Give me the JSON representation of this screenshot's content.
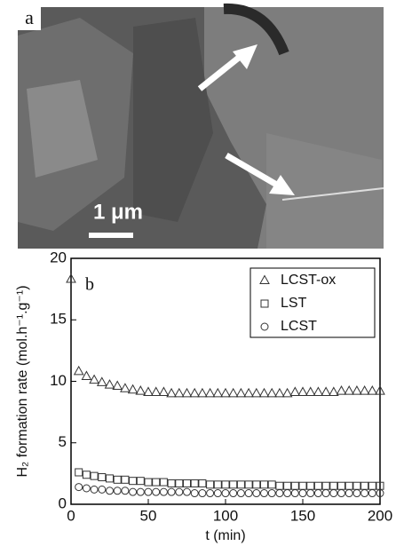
{
  "image_panel": {
    "label": "a",
    "scale_bar": "1 μm"
  },
  "chart_data": {
    "type": "scatter",
    "panel_label": "b",
    "xlabel": "t (min)",
    "ylabel": "H₂ formation rate (mol.h⁻¹.g⁻¹)",
    "xlim": [
      0,
      200
    ],
    "xticks": [
      0,
      50,
      100,
      150,
      200
    ],
    "ylim": [
      0,
      20
    ],
    "yticks": [
      0,
      5,
      10,
      15,
      20
    ],
    "legend": "upper right",
    "x": [
      0,
      5,
      10,
      15,
      20,
      25,
      30,
      35,
      40,
      45,
      50,
      55,
      60,
      65,
      70,
      75,
      80,
      85,
      90,
      95,
      100,
      105,
      110,
      115,
      120,
      125,
      130,
      135,
      140,
      145,
      150,
      155,
      160,
      165,
      170,
      175,
      180,
      185,
      190,
      195,
      200
    ],
    "series": [
      {
        "name": "LCST-ox",
        "marker": "triangle",
        "color": "#333333",
        "values": [
          18.3,
          10.8,
          10.4,
          10.1,
          9.9,
          9.7,
          9.6,
          9.4,
          9.3,
          9.2,
          9.1,
          9.1,
          9.1,
          9.0,
          9.0,
          9.0,
          9.0,
          9.0,
          9.0,
          9.0,
          9.0,
          9.0,
          9.0,
          9.0,
          9.0,
          9.0,
          9.0,
          9.0,
          9.0,
          9.1,
          9.1,
          9.1,
          9.1,
          9.1,
          9.1,
          9.2,
          9.2,
          9.2,
          9.2,
          9.2,
          9.2
        ]
      },
      {
        "name": "LST",
        "marker": "square",
        "color": "#333333",
        "values": [
          null,
          2.6,
          2.4,
          2.3,
          2.2,
          2.1,
          2.0,
          2.0,
          1.9,
          1.9,
          1.8,
          1.8,
          1.8,
          1.7,
          1.7,
          1.7,
          1.7,
          1.7,
          1.6,
          1.6,
          1.6,
          1.6,
          1.6,
          1.6,
          1.6,
          1.6,
          1.6,
          1.5,
          1.5,
          1.5,
          1.5,
          1.5,
          1.5,
          1.5,
          1.5,
          1.5,
          1.5,
          1.5,
          1.5,
          1.5,
          1.5
        ]
      },
      {
        "name": "LCST",
        "marker": "circle",
        "color": "#333333",
        "values": [
          null,
          1.4,
          1.3,
          1.2,
          1.2,
          1.1,
          1.1,
          1.1,
          1.0,
          1.0,
          1.0,
          1.0,
          1.0,
          1.0,
          1.0,
          1.0,
          0.9,
          0.9,
          0.9,
          0.9,
          0.9,
          0.9,
          0.9,
          0.9,
          0.9,
          0.9,
          0.9,
          0.9,
          0.9,
          0.9,
          0.9,
          0.9,
          0.9,
          0.9,
          0.9,
          0.9,
          0.9,
          0.9,
          0.9,
          0.9,
          0.9
        ]
      }
    ]
  }
}
